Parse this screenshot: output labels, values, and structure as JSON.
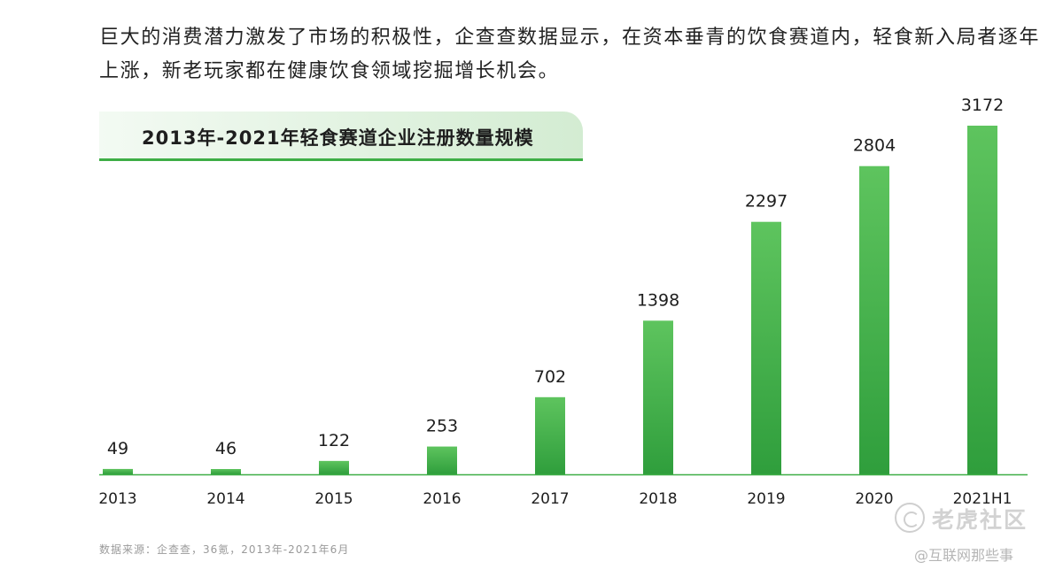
{
  "intro_text": "巨大的消费潜力激发了市场的积极性，企查查数据显示，在资本垂青的饮食赛道内，轻食新入局者逐年上涨，新老玩家都在健康饮食领域挖掘增长机会。",
  "source_note": "数据来源：企查查，36氪，2013年-2021年6月",
  "watermark": {
    "name": "老虎社区",
    "handle": "@互联网那些事"
  },
  "colors": {
    "bar_top": "#5ec45e",
    "bar_bottom": "#2f9e3c",
    "baseline": "#3eae46"
  },
  "chart_data": {
    "type": "bar",
    "title": "2013年-2021年轻食赛道企业注册数量规模",
    "categories": [
      "2013",
      "2014",
      "2015",
      "2016",
      "2017",
      "2018",
      "2019",
      "2020",
      "2021H1"
    ],
    "values": [
      49,
      46,
      122,
      253,
      702,
      1398,
      2297,
      2804,
      3172
    ],
    "xlabel": "",
    "ylabel": "",
    "ylim": [
      0,
      3172
    ],
    "grid": false,
    "legend": "none"
  }
}
